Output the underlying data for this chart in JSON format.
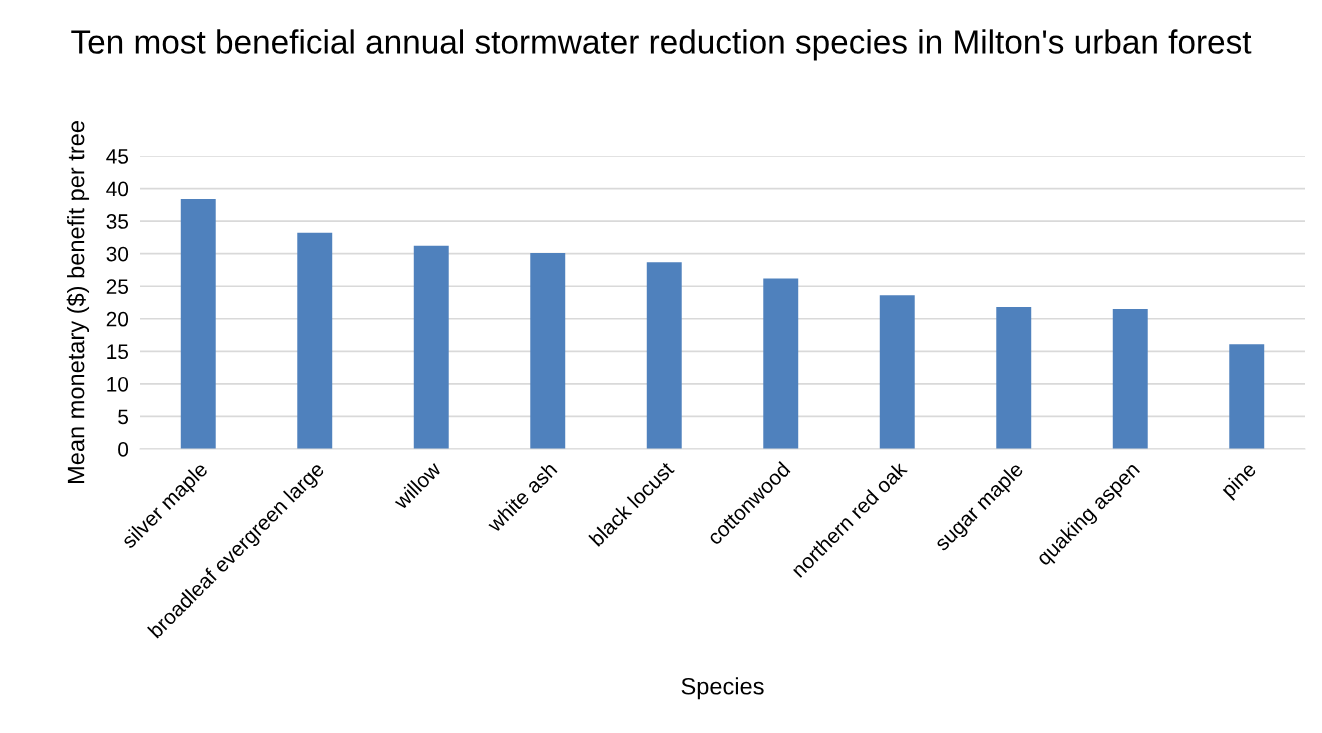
{
  "chart_data": {
    "type": "bar",
    "title": "Ten most beneficial annual stormwater reduction species in Milton's urban forest",
    "xlabel": "Species",
    "ylabel": "Mean monetary ($) benefit per tree",
    "categories": [
      "silver maple",
      "broadleaf evergreen large",
      "willow",
      "white ash",
      "black locust",
      "cottonwood",
      "northern red oak",
      "sugar maple",
      "quaking aspen",
      "pine"
    ],
    "values": [
      38.4,
      33.2,
      31.2,
      30.1,
      28.7,
      26.2,
      23.6,
      21.8,
      21.5,
      16.1
    ],
    "color": "#4f81bd",
    "ylim": [
      0,
      45
    ],
    "yticks": [
      0,
      5,
      10,
      15,
      20,
      25,
      30,
      35,
      40,
      45
    ],
    "grid": "y",
    "legend": false
  }
}
